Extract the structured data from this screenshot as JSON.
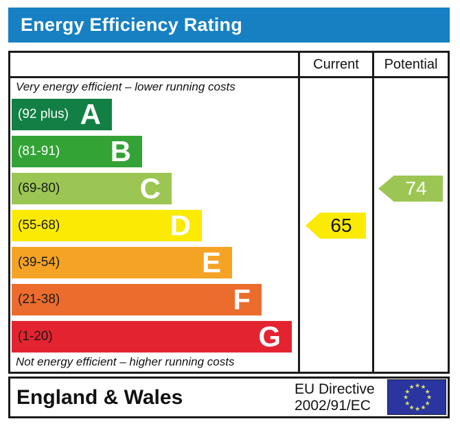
{
  "title": "Energy Efficiency Rating",
  "colors": {
    "title_bar": "#1680c2",
    "border": "#1a1a1a",
    "eu_flag_bg": "#2a35a0",
    "eu_flag_stars": "#d9e36e"
  },
  "table": {
    "columns": [
      "Current",
      "Potential"
    ],
    "top_note": "Very energy efficient – lower running costs",
    "bottom_note": "Not energy efficient – higher running costs"
  },
  "current_marker": {
    "value": "65",
    "band_index": 3,
    "color": "#fbea04",
    "text_color": "#111111"
  },
  "potential_marker": {
    "value": "74",
    "band_index": 2,
    "color": "#9cc653",
    "text_color": "#ffffff"
  },
  "footer": {
    "region": "England & Wales",
    "directive_line1": "EU Directive",
    "directive_line2": "2002/91/EC",
    "eu_flag": "eu-flag-12-stars"
  },
  "chart_data": {
    "type": "bar",
    "title": "Energy Efficiency Rating",
    "legend": [
      "Current",
      "Potential"
    ],
    "bands": [
      {
        "letter": "A",
        "range_label": "(92 plus)",
        "min": 92,
        "max": 100,
        "color": "#128044",
        "label_color": "#ffffff"
      },
      {
        "letter": "B",
        "range_label": "(81-91)",
        "min": 81,
        "max": 91,
        "color": "#33a336",
        "label_color": "#ffffff"
      },
      {
        "letter": "C",
        "range_label": "(69-80)",
        "min": 69,
        "max": 80,
        "color": "#9cc653",
        "label_color": "#1a1a1a"
      },
      {
        "letter": "D",
        "range_label": "(55-68)",
        "min": 55,
        "max": 68,
        "color": "#fbea04",
        "label_color": "#1a1a1a"
      },
      {
        "letter": "E",
        "range_label": "(39-54)",
        "min": 39,
        "max": 54,
        "color": "#f5a324",
        "label_color": "#1a1a1a"
      },
      {
        "letter": "F",
        "range_label": "(21-38)",
        "min": 21,
        "max": 38,
        "color": "#ec6c2d",
        "label_color": "#1a1a1a"
      },
      {
        "letter": "G",
        "range_label": "(1-20)",
        "min": 1,
        "max": 20,
        "color": "#e32430",
        "label_color": "#1a1a1a"
      }
    ],
    "values": {
      "current": 65,
      "potential": 74
    },
    "current_band": "D",
    "potential_band": "C",
    "top_annotation": "Very energy efficient – lower running costs",
    "bottom_annotation": "Not energy efficient – higher running costs"
  }
}
